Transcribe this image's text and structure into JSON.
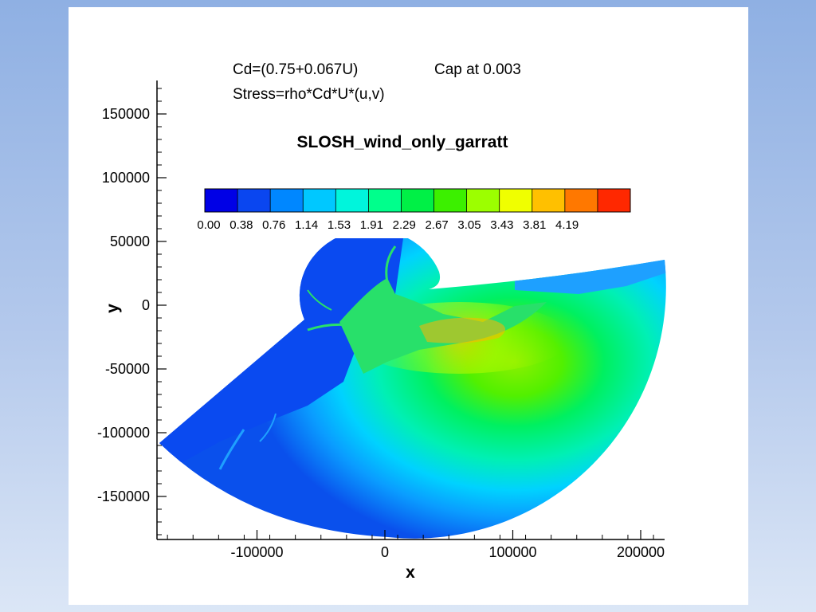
{
  "annotations": {
    "line1": "Cd=(0.75+0.067U)",
    "cap": "Cap at 0.003",
    "line2": "Stress=rho*Cd*U*(u,v)"
  },
  "chart_data": {
    "type": "heatmap",
    "title": "SLOSH_wind_only_garratt",
    "xlabel": "x",
    "ylabel": "y",
    "xlim": [
      -180000,
      220000
    ],
    "ylim": [
      -185000,
      178000
    ],
    "x_ticks": [
      -100000,
      0,
      100000,
      200000
    ],
    "x_tick_labels": [
      "-100000",
      "0",
      "100000",
      "200000"
    ],
    "y_ticks": [
      150000,
      100000,
      50000,
      0,
      -50000,
      -100000,
      -150000
    ],
    "y_tick_labels": [
      "150000",
      "100000",
      "50000",
      "0",
      "-50000",
      "-100000",
      "-150000"
    ],
    "grid": false,
    "legend": {
      "placement": "top",
      "levels": [
        0.0,
        0.38,
        0.76,
        1.14,
        1.53,
        1.91,
        2.29,
        2.67,
        3.05,
        3.43,
        3.81,
        4.19
      ],
      "labels": [
        "0.00",
        "0.38",
        "0.76",
        "1.14",
        "1.53",
        "1.91",
        "2.29",
        "2.67",
        "3.05",
        "3.43",
        "3.81",
        "4.19"
      ],
      "colors": [
        "#0000e6",
        "#0a46f0",
        "#0087ff",
        "#00c8ff",
        "#00f5dc",
        "#00ff8c",
        "#00f046",
        "#3cf000",
        "#9cff00",
        "#f0ff00",
        "#ffc000",
        "#ff7800",
        "#ff2800"
      ]
    }
  }
}
